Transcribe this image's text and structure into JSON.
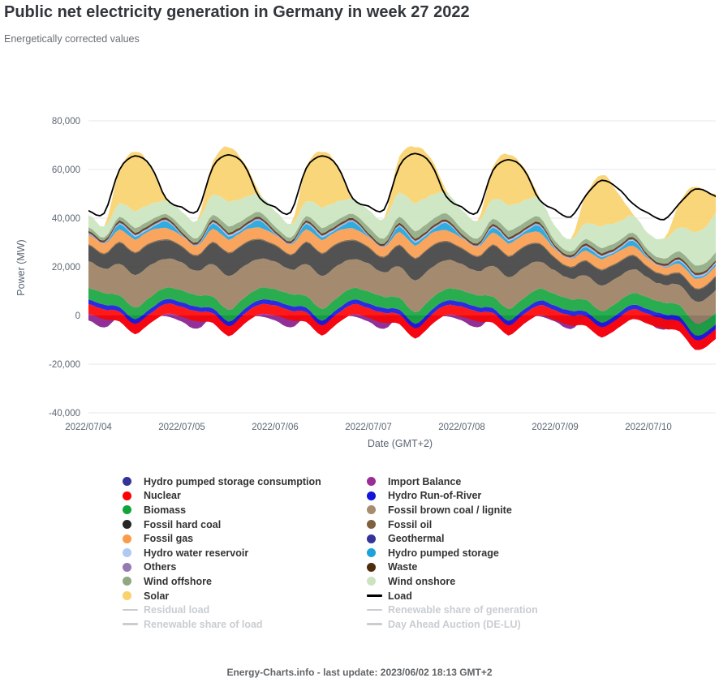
{
  "header": {
    "title": "Public net electricity generation in Germany in week 27 2022",
    "subtitle": "Energetically corrected values"
  },
  "footer": {
    "text": "Energy-Charts.info - last update: 2023/06/02 18:13 GMT+2"
  },
  "chart_data": {
    "type": "area",
    "stacked": true,
    "units": "MW",
    "xlabel": "Date (GMT+2)",
    "ylabel": "Power (MW)",
    "ylim": [
      -42000,
      85000
    ],
    "grid": true,
    "legend_position": "bottom",
    "yticks": [
      {
        "value": -40000,
        "label": "-40,000"
      },
      {
        "value": -20000,
        "label": "-20,000"
      },
      {
        "value": 0,
        "label": "0"
      },
      {
        "value": 20000,
        "label": "20,000"
      },
      {
        "value": 40000,
        "label": "40,000"
      },
      {
        "value": 60000,
        "label": "60,000"
      },
      {
        "value": 80000,
        "label": "80,000"
      }
    ],
    "x_days": [
      "2022/07/04",
      "2022/07/05",
      "2022/07/06",
      "2022/07/07",
      "2022/07/08",
      "2022/07/09",
      "2022/07/10"
    ],
    "x_hours_step": 4,
    "series": [
      {
        "name": "Hydro pumped storage consumption",
        "color": "#333399",
        "values": [
          -2000,
          -5000,
          -500,
          -1500,
          -500,
          -300,
          -2500,
          -5500,
          -500,
          -1500,
          -500,
          -300,
          -2000,
          -5000,
          -500,
          -1500,
          -500,
          -300,
          -2500,
          -5500,
          -500,
          -1500,
          -500,
          -300,
          -2000,
          -5000,
          -500,
          -1500,
          -500,
          -300,
          -2500,
          -5500,
          -800,
          -2000,
          -800,
          -500,
          -3000,
          -6000,
          -1500,
          -4000,
          -2500,
          -900,
          -2500
        ]
      },
      {
        "name": "Import Balance",
        "color": "#9B2D96",
        "values": [
          2500,
          3500,
          -2000,
          -6000,
          -2500,
          1000,
          2000,
          3000,
          -2500,
          -7000,
          -3000,
          800,
          2000,
          3000,
          -2200,
          -6500,
          -2800,
          800,
          1500,
          2500,
          -3000,
          -8000,
          -3500,
          500,
          1500,
          2500,
          -2500,
          -6500,
          -3000,
          500,
          500,
          1500,
          -3500,
          -7000,
          -4500,
          -1000,
          -500,
          500,
          -5000,
          -10000,
          -9000,
          -5000,
          -2000
        ]
      },
      {
        "name": "Nuclear",
        "color": "#FF0000",
        "values": 4050
      },
      {
        "name": "Hydro Run-of-River",
        "color": "#1414DC",
        "values": 1900
      },
      {
        "name": "Biomass",
        "color": "#12A43B",
        "values": 4800
      },
      {
        "name": "Fossil brown coal / lignite",
        "color": "#9A7E5F",
        "values": [
          11000,
          10000,
          13000,
          13500,
          13000,
          12000,
          11500,
          10000,
          13500,
          13800,
          13200,
          12000,
          11500,
          10000,
          13200,
          13600,
          13000,
          12000,
          11500,
          10000,
          13000,
          13000,
          12800,
          11800,
          11000,
          9800,
          12800,
          13000,
          12500,
          11300,
          9500,
          8500,
          10000,
          10500,
          10200,
          9800,
          8200,
          7200,
          8500,
          9000,
          9200,
          9800,
          10200
        ]
      },
      {
        "name": "Fossil hard coal",
        "color": "#3F3F3F",
        "values": [
          6500,
          6000,
          8500,
          9000,
          8800,
          7500,
          6500,
          6000,
          8800,
          9300,
          9000,
          7800,
          6500,
          6000,
          8600,
          9200,
          8800,
          7600,
          6500,
          6000,
          8600,
          8800,
          8700,
          7400,
          6300,
          5800,
          8200,
          8600,
          8200,
          7200,
          5000,
          4500,
          5800,
          6200,
          5900,
          5400,
          4200,
          3800,
          4600,
          5100,
          5200,
          5600,
          6000
        ]
      },
      {
        "name": "Fossil oil",
        "color": "#80603F",
        "values": 450
      },
      {
        "name": "Fossil gas",
        "color": "#FA9B4B",
        "values": [
          4000,
          3800,
          5000,
          5200,
          5000,
          4500,
          4000,
          3800,
          5100,
          5400,
          5100,
          4600,
          4000,
          3800,
          5000,
          5300,
          5000,
          4500,
          4000,
          3800,
          5000,
          5200,
          5000,
          4400,
          3900,
          3700,
          4800,
          5000,
          4800,
          4300,
          3400,
          3200,
          3900,
          4300,
          4100,
          3700,
          3100,
          2900,
          3500,
          3900,
          3900,
          4100,
          4300
        ]
      },
      {
        "name": "Geothermal",
        "color": "#33339B",
        "values": 25
      },
      {
        "name": "Hydro pumped storage",
        "color": "#1CA2DC",
        "values": [
          300,
          100,
          2200,
          1200,
          900,
          2800,
          300,
          100,
          2300,
          1300,
          900,
          2900,
          300,
          100,
          2200,
          1200,
          900,
          2800,
          300,
          100,
          2300,
          1300,
          1000,
          2900,
          300,
          100,
          2100,
          1100,
          900,
          2700,
          300,
          100,
          1500,
          800,
          700,
          2100,
          300,
          100,
          1200,
          800,
          700,
          1600,
          400
        ]
      },
      {
        "name": "Hydro water reservoir",
        "color": "#AFC9F2",
        "values": [
          150,
          120,
          300,
          420,
          360,
          300,
          150,
          120,
          300,
          420,
          360,
          300,
          150,
          120,
          300,
          420,
          360,
          300,
          150,
          120,
          300,
          420,
          360,
          300,
          150,
          120,
          300,
          420,
          360,
          300,
          150,
          120,
          300,
          420,
          360,
          300,
          150,
          120,
          300,
          420,
          360,
          300,
          150
        ]
      },
      {
        "name": "Others",
        "color": "#9678B4",
        "values": 350
      },
      {
        "name": "Waste",
        "color": "#502D0A",
        "values": 800
      },
      {
        "name": "Wind offshore",
        "color": "#8FA882",
        "values": [
          1500,
          1200,
          1500,
          2000,
          1800,
          1500,
          2000,
          1800,
          2000,
          2500,
          2200,
          2000,
          1800,
          1500,
          1800,
          2200,
          2000,
          1800,
          2500,
          2200,
          2500,
          3000,
          2800,
          2500,
          2200,
          2000,
          2200,
          2600,
          2400,
          2200,
          1800,
          1600,
          1800,
          2200,
          2000,
          1800,
          2000,
          2200,
          2500,
          3000,
          3200,
          3400,
          3500
        ]
      },
      {
        "name": "Wind onshore",
        "color": "#CBE4BF",
        "values": [
          5000,
          4500,
          5500,
          7000,
          6500,
          5500,
          6500,
          7000,
          8500,
          10000,
          9000,
          7000,
          6500,
          5500,
          6000,
          8500,
          7500,
          6000,
          7000,
          8000,
          10000,
          11500,
          10500,
          8500,
          8000,
          7000,
          8000,
          10500,
          9000,
          7500,
          6000,
          5000,
          6500,
          9000,
          8000,
          7000,
          7000,
          8000,
          10000,
          13500,
          15500,
          17500,
          18500
        ]
      },
      {
        "name": "Solar",
        "color": "#F9D26C",
        "values": [
          0,
          0,
          14000,
          24500,
          15000,
          800,
          0,
          0,
          13500,
          22500,
          14500,
          800,
          0,
          0,
          14000,
          23000,
          15000,
          800,
          0,
          0,
          15000,
          23000,
          15500,
          800,
          0,
          0,
          13000,
          21000,
          13500,
          700,
          0,
          0,
          12000,
          21000,
          12500,
          700,
          0,
          0,
          10000,
          19000,
          11000,
          600,
          0
        ]
      }
    ],
    "load": {
      "name": "Load",
      "color": "#000000",
      "values": [
        43000,
        42000,
        60000,
        65500,
        61500,
        48000,
        44500,
        43000,
        61000,
        66000,
        62000,
        48500,
        44500,
        42500,
        60500,
        65500,
        61500,
        48000,
        45000,
        43500,
        61500,
        66500,
        62500,
        49000,
        44500,
        42500,
        59500,
        64000,
        60000,
        47500,
        43500,
        40500,
        49500,
        55500,
        52500,
        46000,
        42000,
        39500,
        46000,
        52000,
        50000,
        46500,
        44500
      ]
    }
  },
  "legend": {
    "columns": [
      [
        {
          "label": "Hydro pumped storage consumption",
          "color": "#333399",
          "marker": "dot",
          "disabled": false
        },
        {
          "label": "Nuclear",
          "color": "#FF0000",
          "marker": "dot",
          "disabled": false
        },
        {
          "label": "Biomass",
          "color": "#12A43B",
          "marker": "dot",
          "disabled": false
        },
        {
          "label": "Fossil hard coal",
          "color": "#262626",
          "marker": "dot",
          "disabled": false
        },
        {
          "label": "Fossil gas",
          "color": "#FA9B4B",
          "marker": "dot",
          "disabled": false
        },
        {
          "label": "Hydro water reservoir",
          "color": "#AFC9F2",
          "marker": "dot",
          "disabled": false
        },
        {
          "label": "Others",
          "color": "#9678B4",
          "marker": "dot",
          "disabled": false
        },
        {
          "label": "Wind offshore",
          "color": "#8FA882",
          "marker": "dot",
          "disabled": false
        },
        {
          "label": "Solar",
          "color": "#F9D26C",
          "marker": "dot",
          "disabled": false
        },
        {
          "label": "Residual load",
          "color": "#C9CDD2",
          "marker": "line",
          "disabled": true
        },
        {
          "label": "Renewable share of load",
          "color": "#C9CDD2",
          "marker": "line",
          "disabled": true
        }
      ],
      [
        {
          "label": "Import Balance",
          "color": "#9B2D96",
          "marker": "dot",
          "disabled": false
        },
        {
          "label": "Hydro Run-of-River",
          "color": "#1414DC",
          "marker": "dot",
          "disabled": false
        },
        {
          "label": "Fossil brown coal / lignite",
          "color": "#A78C6F",
          "marker": "dot",
          "disabled": false
        },
        {
          "label": "Fossil oil",
          "color": "#80603F",
          "marker": "dot",
          "disabled": false
        },
        {
          "label": "Geothermal",
          "color": "#33339B",
          "marker": "dot",
          "disabled": false
        },
        {
          "label": "Hydro pumped storage",
          "color": "#1CA2DC",
          "marker": "dot",
          "disabled": false
        },
        {
          "label": "Waste",
          "color": "#502D0A",
          "marker": "dot",
          "disabled": false
        },
        {
          "label": "Wind onshore",
          "color": "#CBE4BF",
          "marker": "dot",
          "disabled": false
        },
        {
          "label": "Load",
          "color": "#000000",
          "marker": "line",
          "disabled": false
        },
        {
          "label": "Renewable share of generation",
          "color": "#C9CDD2",
          "marker": "line",
          "disabled": true
        },
        {
          "label": "Day Ahead Auction (DE-LU)",
          "color": "#C9CDD2",
          "marker": "line",
          "disabled": true
        }
      ]
    ]
  }
}
